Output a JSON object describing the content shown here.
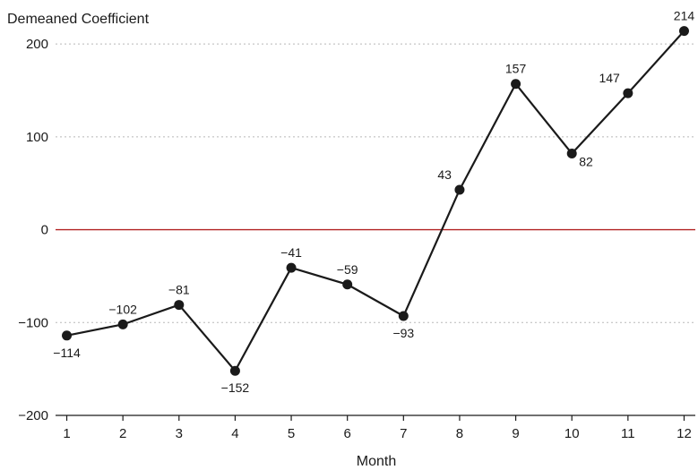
{
  "chart_data": {
    "type": "line",
    "title": "",
    "xlabel": "Month",
    "ylabel": "Demeaned Coefficient",
    "x": [
      1,
      2,
      3,
      4,
      5,
      6,
      7,
      8,
      9,
      10,
      11,
      12
    ],
    "series": [
      {
        "values": [
          -114,
          -102,
          -81,
          -152,
          -41,
          -59,
          -93,
          43,
          157,
          82,
          147,
          214
        ],
        "labels": [
          "−114",
          "−102",
          "−81",
          "−152",
          "−41",
          "−59",
          "−93",
          "43",
          "157",
          "82",
          "147",
          "214"
        ],
        "label_positions": [
          "below",
          "above",
          "above",
          "below",
          "above",
          "above",
          "below",
          "left",
          "above",
          "right",
          "left",
          "above"
        ]
      }
    ],
    "xticks": [
      "1",
      "2",
      "3",
      "4",
      "5",
      "6",
      "7",
      "8",
      "9",
      "10",
      "11",
      "12"
    ],
    "yticks": [
      200,
      100,
      0,
      -100,
      -200
    ],
    "ytick_labels": [
      "200",
      "100",
      "0",
      "−100",
      "−200"
    ],
    "xlim": [
      0.8,
      12.2
    ],
    "ylim": [
      -200,
      230
    ],
    "grid": "horizontal-dotted",
    "zero_line": true,
    "colors": {
      "line": "#1a1a1a",
      "marker": "#1a1a1a",
      "grid": "#b8b8b8",
      "zero_line": "#b22222",
      "axis": "#1a1a1a"
    }
  }
}
